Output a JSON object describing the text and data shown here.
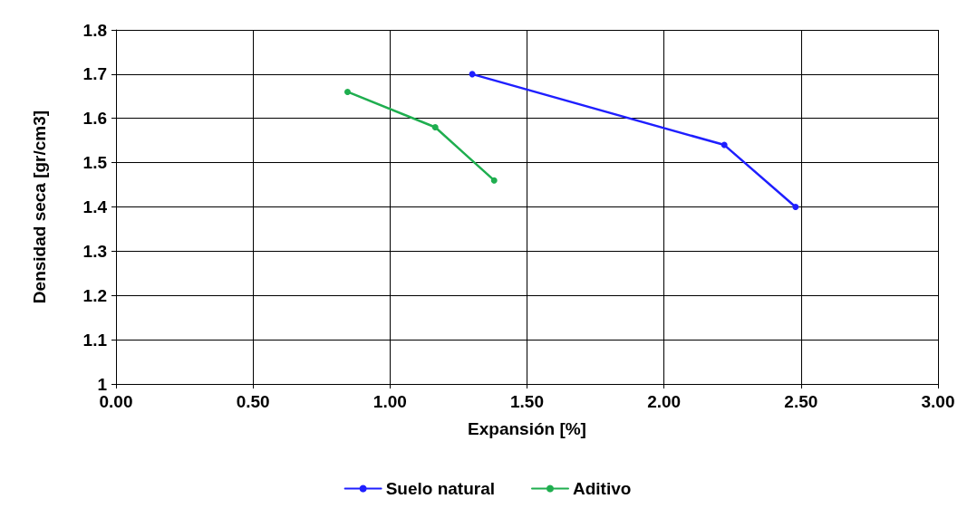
{
  "chart_data": {
    "type": "line",
    "xlabel": "Expansión [%]",
    "ylabel": "Densidad seca [gr/cm3]",
    "series": [
      {
        "name": "Suelo natural",
        "color": "#1f1fff",
        "x": [
          1.3,
          2.22,
          2.48
        ],
        "values": [
          1.7,
          1.54,
          1.4
        ]
      },
      {
        "name": "Aditivo",
        "color": "#1fae4f",
        "x": [
          0.845,
          1.165,
          1.38
        ],
        "values": [
          1.66,
          1.58,
          1.46
        ]
      }
    ],
    "xlim": [
      0,
      3
    ],
    "xticks": [
      {
        "value": 0,
        "label": "0.00"
      },
      {
        "value": 0.5,
        "label": "0.50"
      },
      {
        "value": 1,
        "label": "1.00"
      },
      {
        "value": 1.5,
        "label": "1.50"
      },
      {
        "value": 2,
        "label": "2.00"
      },
      {
        "value": 2.5,
        "label": "2.50"
      },
      {
        "value": 3,
        "label": "3.00"
      }
    ],
    "ylim": [
      1,
      1.8
    ],
    "yticks": [
      1,
      1.1,
      1.2,
      1.3,
      1.4,
      1.5,
      1.6,
      1.7,
      1.8
    ],
    "grid": true,
    "legend": "bottom",
    "marker": "circle",
    "line_style": "solid"
  }
}
